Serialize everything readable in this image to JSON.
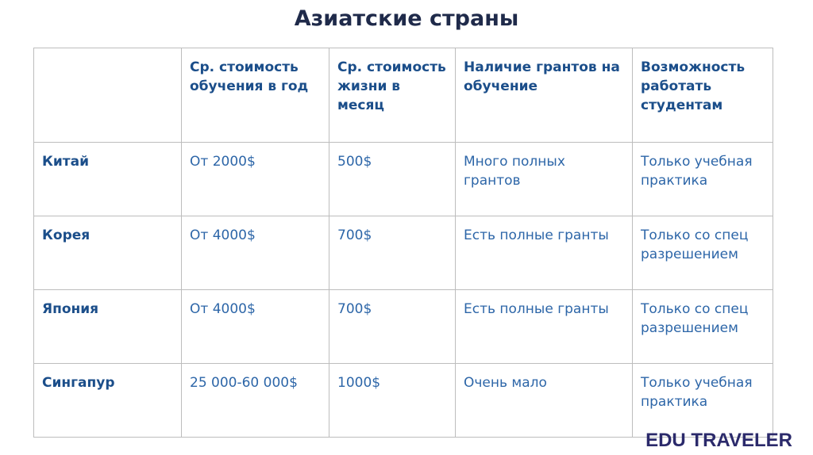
{
  "title": "Азиатские страны",
  "table": {
    "headers": [
      "",
      "Ср. стоимость обучения в год",
      "Ср. стоимость жизни в месяц",
      "Наличие грантов на обучение",
      "Возможность работать студентам"
    ],
    "rows": [
      [
        "Китай",
        "От 2000$",
        "500$",
        "Много полных грантов",
        "Только учебная практика"
      ],
      [
        "Корея",
        "От 4000$",
        "700$",
        "Есть полные гранты",
        "Только со спец разрешением"
      ],
      [
        "Япония",
        "От 4000$",
        "700$",
        "Есть полные гранты",
        "Только со спец разрешением"
      ],
      [
        "Сингапур",
        "25 000-60 000$",
        "1000$",
        "Очень мало",
        "Только учебная практика"
      ]
    ]
  },
  "logo": "EDU TRAVELER",
  "colors": {
    "header_text": "#1b4e8a",
    "body_text": "#2d66a8",
    "title": "#1f2a4a",
    "logo": "#2b2a6b"
  }
}
